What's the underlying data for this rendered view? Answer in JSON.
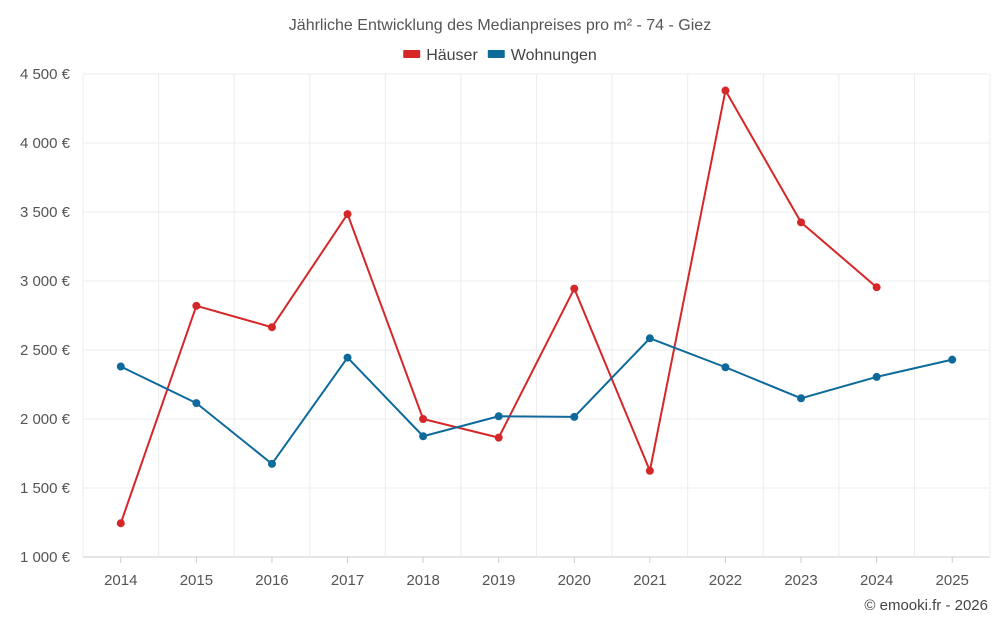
{
  "chart_data": {
    "type": "line",
    "title": "Jährliche Entwicklung des Medianpreises pro m² - 74 - Giez",
    "categories": [
      "2014",
      "2015",
      "2016",
      "2017",
      "2018",
      "2019",
      "2020",
      "2021",
      "2022",
      "2023",
      "2024",
      "2025"
    ],
    "series": [
      {
        "name": "Häuser",
        "color": "#d62728",
        "values": [
          1245,
          2820,
          2665,
          3485,
          2000,
          1865,
          2945,
          1625,
          4380,
          3425,
          2955,
          null
        ]
      },
      {
        "name": "Wohnungen",
        "color": "#0f6a9c",
        "values": [
          2380,
          2115,
          1675,
          2445,
          1875,
          2020,
          2015,
          2585,
          2375,
          2150,
          2305,
          2430
        ]
      }
    ],
    "ylim": [
      1000,
      4500
    ],
    "yticks": [
      1000,
      1500,
      2000,
      2500,
      3000,
      3500,
      4000,
      4500
    ],
    "ytick_labels": [
      "1 000 €",
      "1 500 €",
      "2 000 €",
      "2 500 €",
      "3 000 €",
      "3 500 €",
      "4 000 €",
      "4 500 €"
    ],
    "grid": true,
    "legend_position": "top-center"
  },
  "credit": "© emooki.fr - 2026"
}
